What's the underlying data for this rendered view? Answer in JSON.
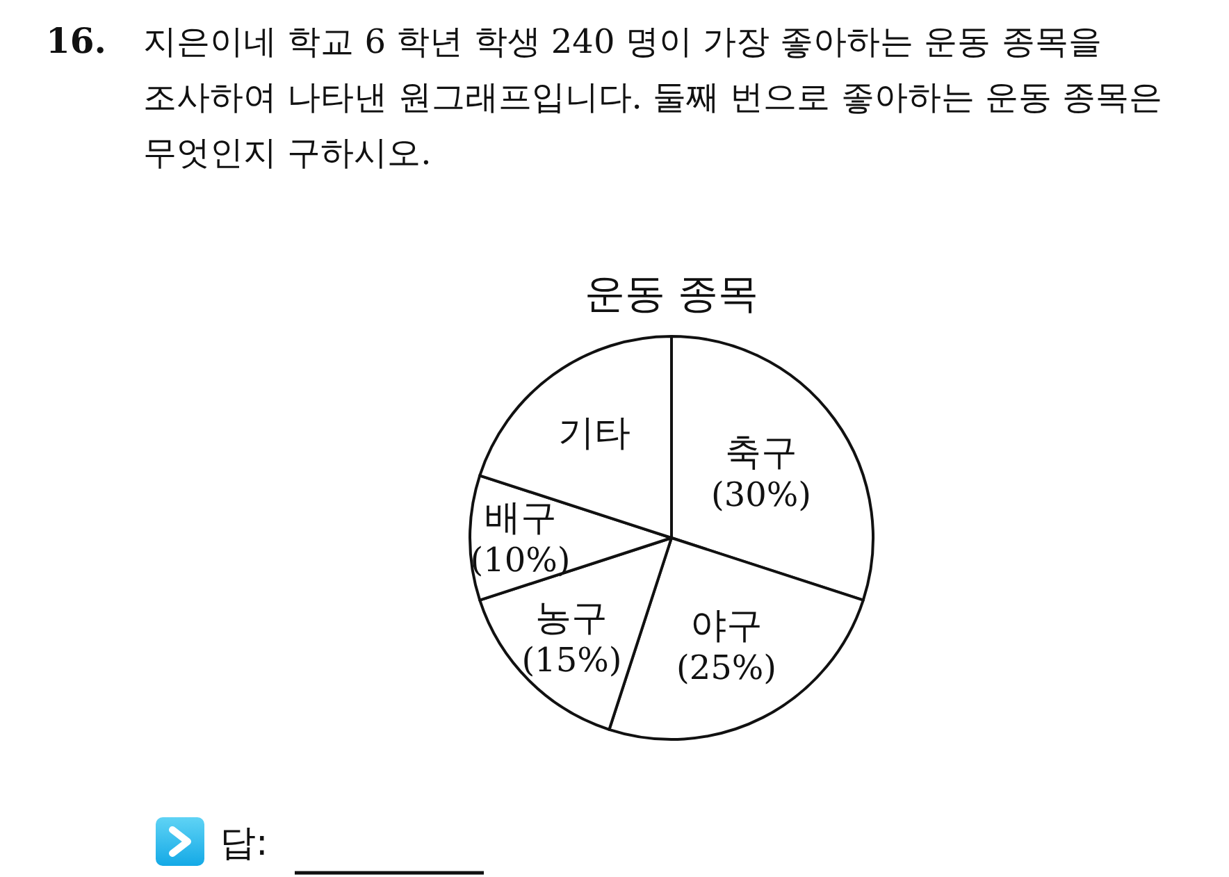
{
  "chart_data": {
    "type": "pie",
    "title": "운동 종목",
    "categories": [
      "축구",
      "야구",
      "농구",
      "배구",
      "기타"
    ],
    "values": [
      30,
      25,
      15,
      10,
      20
    ],
    "value_labels": [
      "(30%)",
      "(25%)",
      "(15%)",
      "(10%)",
      null
    ],
    "colors": [
      "#ffffff",
      "#ffffff",
      "#ffffff",
      "#ffffff",
      "#ffffff"
    ],
    "annotations": [
      "16.",
      "지은이네 학교 6 학년 학생 240 명이 가장 좋아하는 운동 종목을 조사하여 나타낸 원그래프입니다. 둘째 번으로 좋아하는 운동 종목은 무엇인지 구하시오.",
      "답:"
    ]
  }
}
